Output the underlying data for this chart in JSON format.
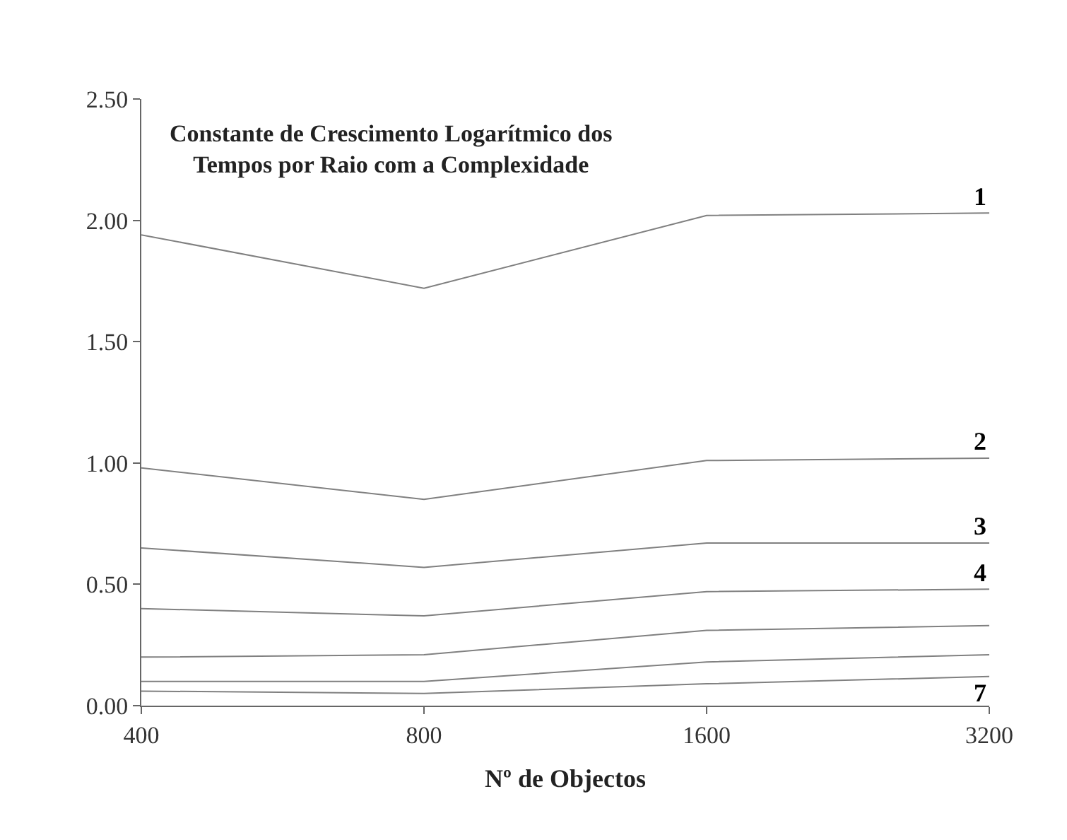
{
  "chart_data": {
    "type": "line",
    "title": "Constante de Crescimento Logarítmico dos\nTempos por Raio com a Complexidade",
    "xlabel": "Nº de Objectos",
    "categories": [
      "400",
      "800",
      "1600",
      "3200"
    ],
    "series": [
      {
        "name": "1",
        "color": "#808080",
        "values": [
          1.94,
          1.72,
          2.02,
          2.03
        ]
      },
      {
        "name": "2",
        "color": "#808080",
        "values": [
          0.98,
          0.85,
          1.01,
          1.02
        ]
      },
      {
        "name": "3",
        "color": "#808080",
        "values": [
          0.65,
          0.57,
          0.67,
          0.67
        ]
      },
      {
        "name": "4",
        "color": "#808080",
        "values": [
          0.4,
          0.37,
          0.47,
          0.48
        ]
      },
      {
        "color": "#808080",
        "values": [
          0.2,
          0.21,
          0.31,
          0.33
        ]
      },
      {
        "color": "#808080",
        "values": [
          0.1,
          0.1,
          0.18,
          0.21
        ]
      },
      {
        "name": "7",
        "color": "#808080",
        "values": [
          0.06,
          0.05,
          0.09,
          0.12
        ]
      }
    ],
    "ylim": [
      0,
      2.5
    ],
    "yticks": [
      {
        "value": 0,
        "label": "0.00"
      },
      {
        "value": 0.5,
        "label": "0.50"
      },
      {
        "value": 1,
        "label": "1.00"
      },
      {
        "value": 1.5,
        "label": "1.50"
      },
      {
        "value": 2,
        "label": "2.00"
      },
      {
        "value": 2.5,
        "label": "2.50"
      }
    ],
    "legend": false,
    "marker": "none",
    "line_style": "solid"
  }
}
